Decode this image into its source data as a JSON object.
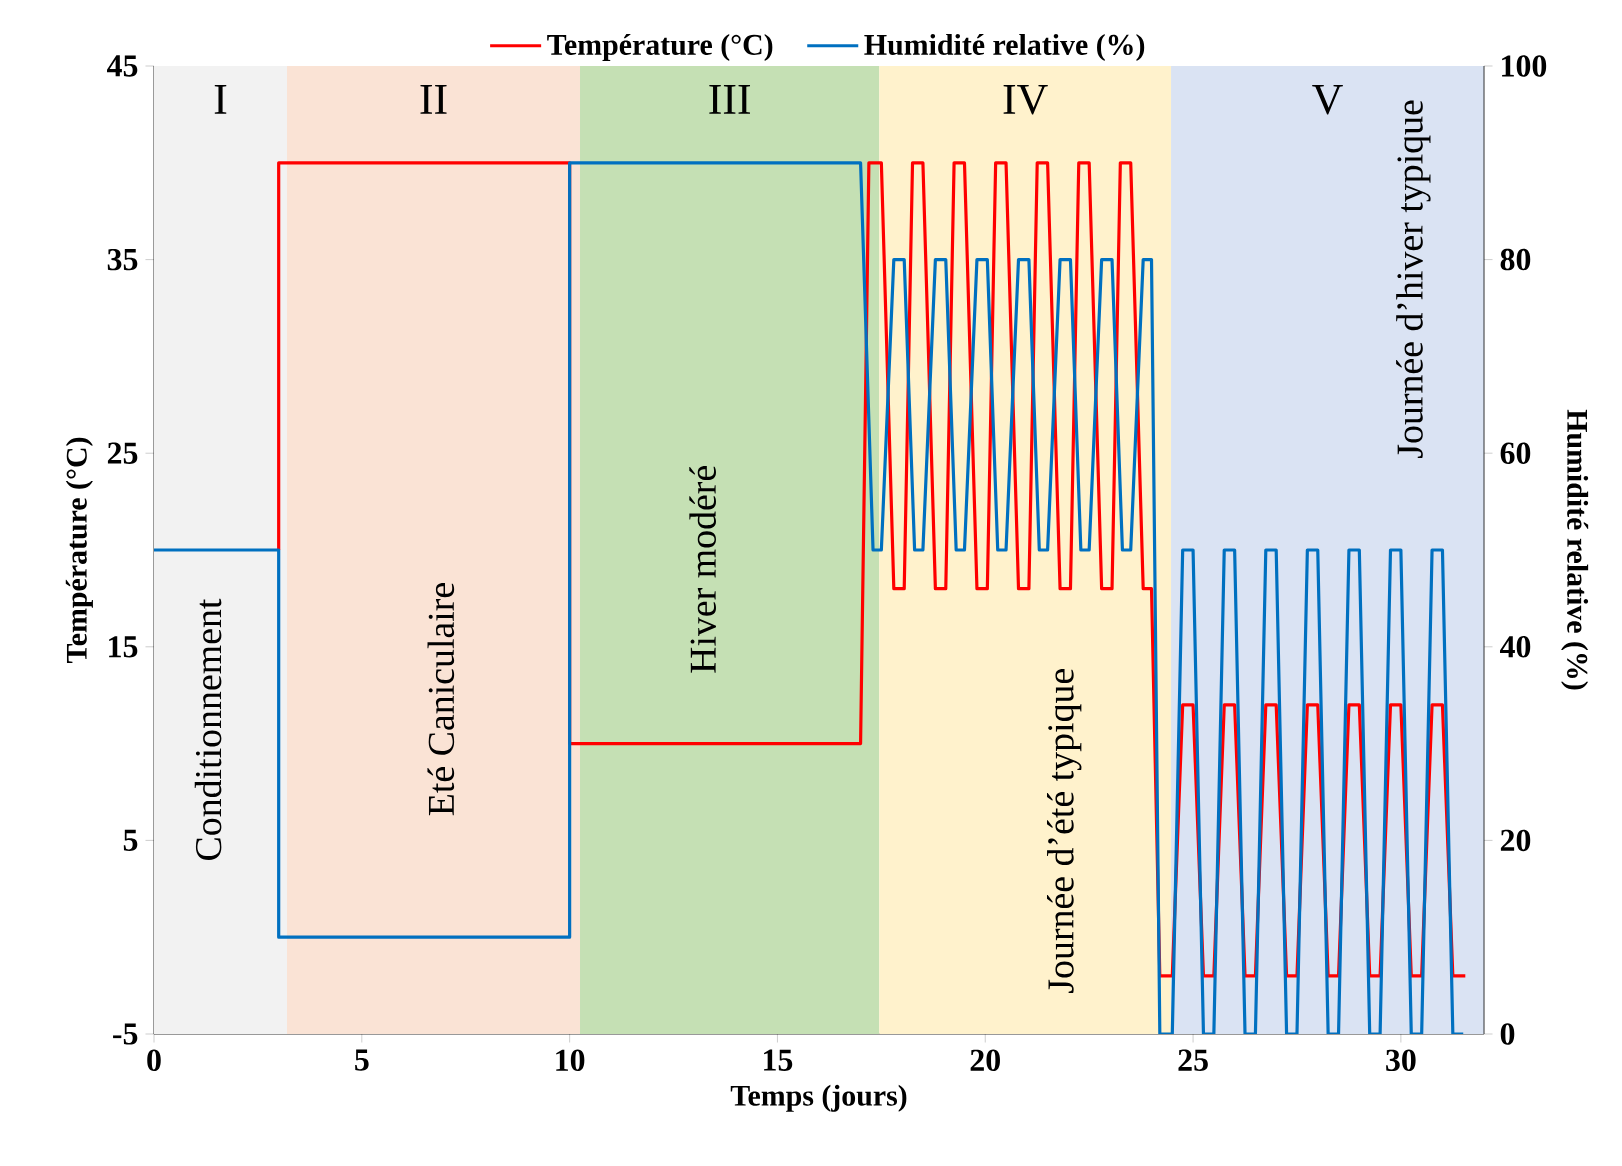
{
  "chart_data": {
    "type": "line",
    "xlabel": "Temps (jours)",
    "ylabel": "Température (°C)",
    "y2label": "Humidité relative (%)",
    "xlim": [
      0,
      32
    ],
    "xticks": [
      0,
      5,
      10,
      15,
      20,
      25,
      30
    ],
    "ylim": [
      -5,
      45
    ],
    "yticks": [
      -5,
      5,
      15,
      25,
      35,
      45
    ],
    "y2lim": [
      0,
      100
    ],
    "y2ticks": [
      0,
      20,
      40,
      60,
      80,
      100
    ],
    "legend": "top",
    "marker": "none",
    "series": [
      {
        "name": "Température (°C)",
        "color": "#ff0000",
        "x": [
          3,
          3,
          10,
          10,
          17,
          17.2,
          17.5,
          17.8,
          18.05,
          18.25,
          18.5,
          18.8,
          19.05,
          19.25,
          19.5,
          19.8,
          20.05,
          20.25,
          20.5,
          20.8,
          21.05,
          21.25,
          21.5,
          21.8,
          22.05,
          22.25,
          22.5,
          22.8,
          23.05,
          23.25,
          23.5,
          23.8,
          24,
          24.2,
          24.5,
          24.75,
          25,
          25.25,
          25.5,
          25.75,
          26,
          26.25,
          26.5,
          26.75,
          27,
          27.25,
          27.5,
          27.75,
          28,
          28.25,
          28.5,
          28.75,
          29,
          29.25,
          29.5,
          29.75,
          30,
          30.25,
          30.5,
          30.75,
          31,
          31.25,
          31.55
        ],
        "values": [
          20,
          40,
          40,
          10,
          10,
          40,
          40,
          18,
          18,
          40,
          40,
          18,
          18,
          40,
          40,
          18,
          18,
          40,
          40,
          18,
          18,
          40,
          40,
          18,
          18,
          40,
          40,
          18,
          18,
          40,
          40,
          18,
          18,
          -2,
          -2,
          12,
          12,
          -2,
          -2,
          12,
          12,
          -2,
          -2,
          12,
          12,
          -2,
          -2,
          12,
          12,
          -2,
          -2,
          12,
          12,
          -2,
          -2,
          12,
          12,
          -2,
          -2,
          12,
          12,
          -2,
          -2
        ]
      },
      {
        "name": "Humidité relative (%)",
        "color": "#0070c0",
        "axis": "y2",
        "x": [
          0,
          3,
          3,
          10,
          10,
          17,
          17.3,
          17.5,
          17.8,
          18.05,
          18.3,
          18.5,
          18.8,
          19.05,
          19.3,
          19.5,
          19.8,
          20.05,
          20.3,
          20.5,
          20.8,
          21.05,
          21.3,
          21.5,
          21.8,
          22.05,
          22.3,
          22.5,
          22.8,
          23.05,
          23.3,
          23.5,
          23.8,
          24,
          24.2,
          24.5,
          24.75,
          25,
          25.25,
          25.5,
          25.75,
          26,
          26.25,
          26.5,
          26.75,
          27,
          27.25,
          27.5,
          27.75,
          28,
          28.25,
          28.5,
          28.75,
          29,
          29.25,
          29.5,
          29.75,
          30,
          30.25,
          30.5,
          30.75,
          31,
          31.25,
          31.5
        ],
        "values": [
          50,
          50,
          10,
          10,
          90,
          90,
          50,
          50,
          80,
          80,
          50,
          50,
          80,
          80,
          50,
          50,
          80,
          80,
          50,
          50,
          80,
          80,
          50,
          50,
          80,
          80,
          50,
          50,
          80,
          80,
          50,
          50,
          80,
          80,
          0,
          0,
          50,
          50,
          0,
          0,
          50,
          50,
          0,
          0,
          50,
          50,
          0,
          0,
          50,
          50,
          0,
          0,
          50,
          50,
          0,
          0,
          50,
          50,
          0,
          0,
          50,
          50,
          0,
          0
        ]
      }
    ],
    "bands": [
      {
        "axis": "x",
        "from": 0,
        "to": 3.2,
        "label": "I",
        "color": "#f2f2f2"
      },
      {
        "axis": "x",
        "from": 3.2,
        "to": 10.25,
        "label": "II",
        "color": "#fae3d5"
      },
      {
        "axis": "x",
        "from": 10.25,
        "to": 17.45,
        "label": "III",
        "color": "#c5e0b4"
      },
      {
        "axis": "x",
        "from": 17.45,
        "to": 24.47,
        "label": "IV",
        "color": "#fff2cc"
      },
      {
        "axis": "x",
        "from": 24.47,
        "to": 32,
        "label": "V",
        "color": "#dae3f3"
      }
    ],
    "annotations": [
      "Conditionnement",
      "Eté Caniculaire",
      "Hiver modéré",
      "Journée d’été typique",
      "Journée d’hiver typique"
    ]
  }
}
